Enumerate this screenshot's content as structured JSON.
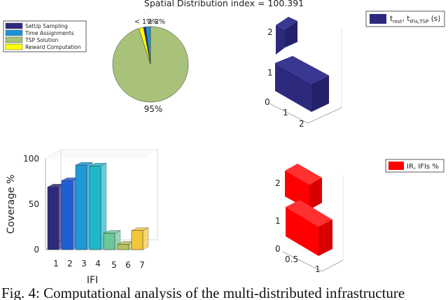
{
  "title": "Spatial Distribution index = 100.391",
  "caption": "Fig. 4: Computational analysis of the multi-distributed infrastructure",
  "chart_data": [
    {
      "type": "pie",
      "labels": [
        "SetUp Sampling",
        "Time Assignments",
        "TSP Solution",
        "Reward Computation"
      ],
      "values": [
        1,
        2,
        95,
        2
      ],
      "colors": [
        "#2d2a7e",
        "#1f92d6",
        "#a8c27a",
        "#ffff00"
      ],
      "slice_labels": [
        "< 1%",
        "2%",
        "95%",
        "2%"
      ],
      "legend_position": "top-left"
    },
    {
      "type": "bar3d",
      "legend": [
        "t",
        "rest",
        "t",
        "IFIs,TSP",
        "(s)"
      ],
      "color": "#2d2a7e",
      "x_ticks": [
        "1",
        "2"
      ],
      "y_ticks": [
        "0",
        "1",
        "2"
      ],
      "legend_position": "top-right"
    },
    {
      "type": "bar",
      "categories": [
        "1",
        "2",
        "3",
        "4",
        "5",
        "6",
        "7"
      ],
      "values": [
        69,
        76,
        93,
        92,
        18,
        6,
        21
      ],
      "colors": [
        "#2d2a7e",
        "#1f5fd6",
        "#1e9ad6",
        "#20b8c8",
        "#6cc89a",
        "#b8c25c",
        "#f4c73a"
      ],
      "xlabel": "IFI",
      "ylabel": "Coverage %",
      "ylim": [
        0,
        100
      ],
      "y_ticks": [
        0,
        50,
        100
      ]
    },
    {
      "type": "bar3d",
      "legend": "IR, IFIs %",
      "color": "#ff0000",
      "x_ticks": [
        "0.5",
        "1"
      ],
      "y_ticks": [
        "0",
        "1",
        "2"
      ],
      "legend_position": "top-right"
    }
  ]
}
